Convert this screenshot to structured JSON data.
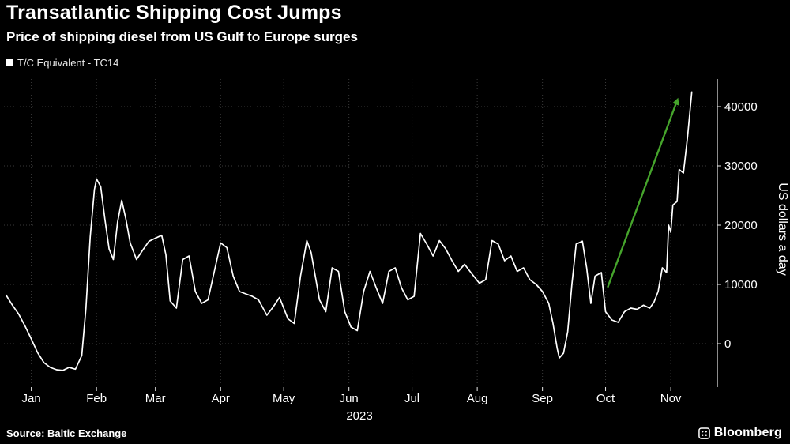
{
  "header": {
    "title": "Transatlantic Shipping Cost Jumps",
    "subtitle": "Price of shipping diesel from US Gulf to Europe surges"
  },
  "legend": {
    "series_label": "T/C Equivalent - TC14",
    "marker_color": "#ffffff"
  },
  "chart_data": {
    "type": "line",
    "title": "Transatlantic Shipping Cost Jumps",
    "series_name": "T/C Equivalent - TC14",
    "xlabel": "2023",
    "ylabel": "US dollars a day",
    "x_unit": "day_of_year_2023",
    "xlim": [
      -13,
      325
    ],
    "ylim": [
      -7000,
      44500
    ],
    "x": [
      -12,
      -9,
      -6,
      -3,
      0,
      3,
      6,
      9,
      12,
      15,
      18,
      21,
      24,
      26,
      28,
      30,
      31,
      33,
      35,
      37,
      39,
      41,
      43,
      45,
      47,
      50,
      53,
      56,
      59,
      62,
      64,
      66,
      69,
      72,
      75,
      78,
      81,
      84,
      87,
      90,
      93,
      96,
      99,
      102,
      105,
      108,
      112,
      115,
      118,
      122,
      125,
      128,
      131,
      133,
      137,
      140,
      143,
      146,
      149,
      152,
      155,
      158,
      161,
      164,
      167,
      170,
      173,
      176,
      179,
      182,
      185,
      188,
      191,
      194,
      197,
      200,
      203,
      206,
      209,
      213,
      216,
      219,
      222,
      225,
      228,
      231,
      234,
      237,
      240,
      243,
      246,
      248,
      250,
      251,
      253,
      255,
      257,
      259,
      262,
      264,
      266,
      268,
      271,
      273,
      276,
      279,
      282,
      285,
      288,
      291,
      294,
      296,
      298,
      300,
      302,
      303,
      304,
      305,
      307,
      308,
      310,
      312,
      314
    ],
    "values": [
      8200,
      6500,
      5000,
      3000,
      800,
      -1500,
      -3200,
      -4000,
      -4400,
      -4500,
      -4000,
      -4300,
      -2000,
      6000,
      18000,
      26000,
      27800,
      26500,
      21000,
      16000,
      14200,
      20500,
      24200,
      21000,
      17000,
      14200,
      15800,
      17300,
      17800,
      18300,
      15000,
      7200,
      6000,
      14200,
      14800,
      8800,
      6800,
      7400,
      12200,
      17000,
      16200,
      11400,
      8800,
      8400,
      8000,
      7400,
      4800,
      6200,
      7800,
      4200,
      3400,
      11400,
      17400,
      15400,
      7400,
      5400,
      12800,
      12200,
      5400,
      2800,
      2200,
      8800,
      12200,
      9400,
      6800,
      12200,
      12800,
      9400,
      7400,
      8000,
      18600,
      16800,
      14800,
      17400,
      16000,
      14000,
      12200,
      13400,
      12000,
      10200,
      10800,
      17400,
      16800,
      14000,
      14800,
      12200,
      12800,
      10800,
      10000,
      8800,
      6800,
      3400,
      -800,
      -2400,
      -1600,
      2000,
      10000,
      16800,
      17300,
      12800,
      6800,
      11400,
      12000,
      5400,
      4000,
      3600,
      5400,
      6000,
      5800,
      6500,
      6000,
      7000,
      8800,
      12800,
      12000,
      20000,
      18800,
      23400,
      24000,
      29400,
      28800,
      35000,
      42500
    ],
    "x_ticks": [
      {
        "day": 0,
        "label": "Jan"
      },
      {
        "day": 31,
        "label": "Feb"
      },
      {
        "day": 59,
        "label": "Mar"
      },
      {
        "day": 90,
        "label": "Apr"
      },
      {
        "day": 120,
        "label": "May"
      },
      {
        "day": 151,
        "label": "Jun"
      },
      {
        "day": 181,
        "label": "Jul"
      },
      {
        "day": 212,
        "label": "Aug"
      },
      {
        "day": 243,
        "label": "Sep"
      },
      {
        "day": 273,
        "label": "Oct"
      },
      {
        "day": 304,
        "label": "Nov"
      }
    ],
    "x_axis_year_label": "2023",
    "y_ticks": [
      {
        "value": 0,
        "label": "0"
      },
      {
        "value": 10000,
        "label": "10000"
      },
      {
        "value": 20000,
        "label": "20000"
      },
      {
        "value": 30000,
        "label": "30000"
      },
      {
        "value": 40000,
        "label": "40000"
      }
    ],
    "line_color": "#ffffff",
    "grid_color": "#3a3a3a",
    "axis_color": "#e8e8e8",
    "text_color": "#e8e8e8",
    "background": "#000000",
    "grid": true,
    "legend_position": "top-left",
    "annotation_arrow": {
      "from": [
        274,
        9500
      ],
      "to": [
        307,
        41000
      ],
      "color": "#46a52c"
    }
  },
  "footer": {
    "source": "Source: Baltic Exchange",
    "brand": "Bloomberg"
  }
}
